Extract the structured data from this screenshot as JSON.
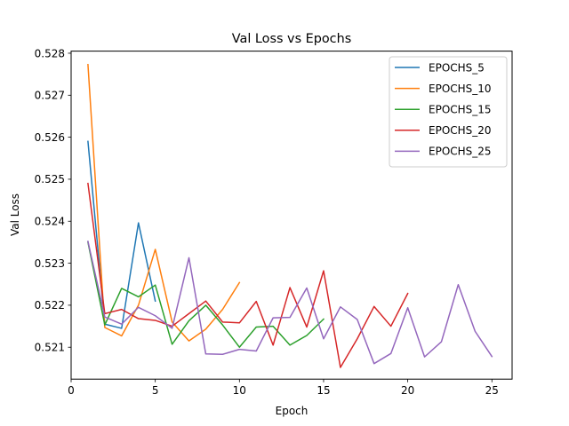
{
  "chart_data": {
    "type": "line",
    "title": "Val Loss vs Epochs",
    "xlabel": "Epoch",
    "ylabel": "Val Loss",
    "xlim": [
      0.0,
      26.2
    ],
    "ylim": [
      0.52024,
      0.52805
    ],
    "xticks": [
      0,
      5,
      10,
      15,
      20,
      25
    ],
    "yticks": [
      0.521,
      0.522,
      0.523,
      0.524,
      0.525,
      0.526,
      0.527,
      0.528
    ],
    "grid": false,
    "legend_position": "top-right",
    "series": [
      {
        "name": "EPOCHS_5",
        "color": "#1f77b4",
        "x": [
          1,
          2,
          3,
          4,
          5
        ],
        "y": [
          0.5259,
          0.52155,
          0.52145,
          0.52396,
          0.5221
        ]
      },
      {
        "name": "EPOCHS_10",
        "color": "#ff7f0e",
        "x": [
          1,
          2,
          3,
          4,
          5,
          6,
          7,
          8,
          9,
          10
        ],
        "y": [
          0.52773,
          0.52147,
          0.52127,
          0.522,
          0.52333,
          0.5216,
          0.52115,
          0.52143,
          0.5219,
          0.52254
        ]
      },
      {
        "name": "EPOCHS_15",
        "color": "#2ca02c",
        "x": [
          1,
          2,
          3,
          4,
          5,
          6,
          7,
          8,
          9,
          10,
          11,
          12,
          13,
          14,
          15
        ],
        "y": [
          0.5235,
          0.52153,
          0.5224,
          0.5222,
          0.52248,
          0.52107,
          0.52163,
          0.522,
          0.52153,
          0.521,
          0.52148,
          0.5215,
          0.52105,
          0.52128,
          0.52167
        ]
      },
      {
        "name": "EPOCHS_20",
        "color": "#d62728",
        "x": [
          1,
          2,
          3,
          4,
          5,
          6,
          7,
          8,
          9,
          10,
          11,
          12,
          13,
          14,
          15,
          16,
          17,
          18,
          19,
          20
        ],
        "y": [
          0.5249,
          0.5218,
          0.5219,
          0.52168,
          0.52164,
          0.5215,
          0.5218,
          0.5221,
          0.5216,
          0.52158,
          0.52209,
          0.52105,
          0.52242,
          0.52148,
          0.52282,
          0.52052,
          0.5212,
          0.52197,
          0.5215,
          0.52228
        ]
      },
      {
        "name": "EPOCHS_25",
        "color": "#9467bd",
        "x": [
          1,
          2,
          3,
          4,
          5,
          6,
          7,
          8,
          9,
          10,
          11,
          12,
          13,
          14,
          15,
          16,
          17,
          18,
          19,
          20,
          21,
          22,
          23,
          24,
          25
        ],
        "y": [
          0.52352,
          0.52172,
          0.52155,
          0.52195,
          0.52175,
          0.52145,
          0.52313,
          0.52084,
          0.52083,
          0.52095,
          0.52091,
          0.5217,
          0.52171,
          0.52241,
          0.5212,
          0.52196,
          0.52166,
          0.52061,
          0.52085,
          0.52194,
          0.52077,
          0.52113,
          0.52249,
          0.52138,
          0.52078
        ]
      }
    ]
  }
}
